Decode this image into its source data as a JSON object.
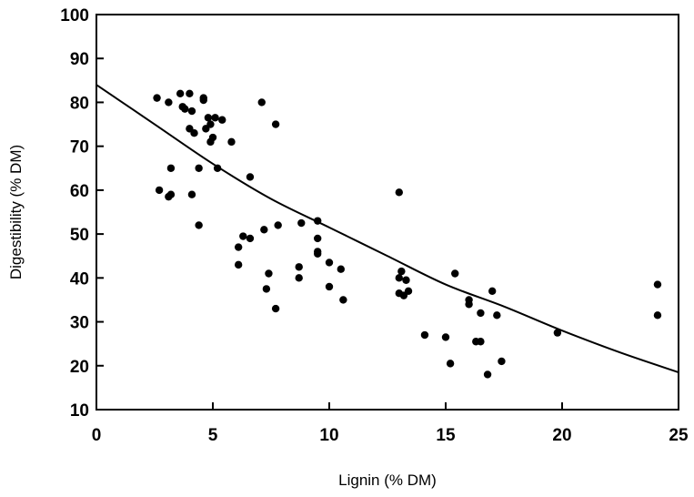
{
  "chart_data": {
    "type": "scatter",
    "title": "",
    "xlabel": "Lignin (% DM)",
    "ylabel": "Digestibility (% DM)",
    "xlim": [
      0,
      25
    ],
    "ylim": [
      10,
      100
    ],
    "xticks": [
      0,
      5,
      10,
      15,
      20,
      25
    ],
    "yticks": [
      10,
      20,
      30,
      40,
      50,
      60,
      70,
      80,
      90,
      100
    ],
    "grid": false,
    "legend": "none",
    "points": [
      {
        "x": 2.6,
        "y": 81
      },
      {
        "x": 2.7,
        "y": 60
      },
      {
        "x": 3.1,
        "y": 80
      },
      {
        "x": 3.1,
        "y": 58.5
      },
      {
        "x": 3.2,
        "y": 59
      },
      {
        "x": 3.2,
        "y": 65
      },
      {
        "x": 3.6,
        "y": 82
      },
      {
        "x": 3.7,
        "y": 79
      },
      {
        "x": 3.8,
        "y": 78.5
      },
      {
        "x": 4.0,
        "y": 82
      },
      {
        "x": 4.0,
        "y": 74
      },
      {
        "x": 4.1,
        "y": 78
      },
      {
        "x": 4.1,
        "y": 59
      },
      {
        "x": 4.2,
        "y": 73
      },
      {
        "x": 4.4,
        "y": 52
      },
      {
        "x": 4.4,
        "y": 65
      },
      {
        "x": 4.6,
        "y": 81
      },
      {
        "x": 4.6,
        "y": 80.5
      },
      {
        "x": 4.7,
        "y": 74
      },
      {
        "x": 4.8,
        "y": 76.5
      },
      {
        "x": 4.9,
        "y": 71
      },
      {
        "x": 4.9,
        "y": 75
      },
      {
        "x": 5.0,
        "y": 72
      },
      {
        "x": 5.1,
        "y": 76.5
      },
      {
        "x": 5.2,
        "y": 65
      },
      {
        "x": 5.4,
        "y": 76
      },
      {
        "x": 5.8,
        "y": 71
      },
      {
        "x": 6.1,
        "y": 47
      },
      {
        "x": 6.1,
        "y": 43
      },
      {
        "x": 6.3,
        "y": 49.5
      },
      {
        "x": 6.6,
        "y": 63
      },
      {
        "x": 6.6,
        "y": 49
      },
      {
        "x": 7.1,
        "y": 80
      },
      {
        "x": 7.2,
        "y": 51
      },
      {
        "x": 7.3,
        "y": 37.5
      },
      {
        "x": 7.4,
        "y": 41
      },
      {
        "x": 7.7,
        "y": 33
      },
      {
        "x": 7.7,
        "y": 75
      },
      {
        "x": 7.8,
        "y": 52
      },
      {
        "x": 8.7,
        "y": 42.5
      },
      {
        "x": 8.7,
        "y": 40
      },
      {
        "x": 8.8,
        "y": 52.5
      },
      {
        "x": 9.5,
        "y": 53
      },
      {
        "x": 9.5,
        "y": 49
      },
      {
        "x": 9.5,
        "y": 46
      },
      {
        "x": 9.5,
        "y": 45.5
      },
      {
        "x": 10.0,
        "y": 43.5
      },
      {
        "x": 10.0,
        "y": 38
      },
      {
        "x": 10.5,
        "y": 42
      },
      {
        "x": 10.6,
        "y": 35
      },
      {
        "x": 13.0,
        "y": 59.5
      },
      {
        "x": 13.0,
        "y": 40
      },
      {
        "x": 13.0,
        "y": 36.5
      },
      {
        "x": 13.1,
        "y": 41.5
      },
      {
        "x": 13.2,
        "y": 36
      },
      {
        "x": 13.3,
        "y": 39.5
      },
      {
        "x": 13.4,
        "y": 37
      },
      {
        "x": 14.1,
        "y": 27
      },
      {
        "x": 15.0,
        "y": 26.5
      },
      {
        "x": 15.2,
        "y": 20.5
      },
      {
        "x": 15.4,
        "y": 41
      },
      {
        "x": 16.0,
        "y": 35
      },
      {
        "x": 16.0,
        "y": 34
      },
      {
        "x": 16.3,
        "y": 25.5
      },
      {
        "x": 16.5,
        "y": 25.5
      },
      {
        "x": 16.5,
        "y": 32
      },
      {
        "x": 16.8,
        "y": 18
      },
      {
        "x": 17.0,
        "y": 37
      },
      {
        "x": 17.2,
        "y": 31.5
      },
      {
        "x": 17.4,
        "y": 21
      },
      {
        "x": 19.8,
        "y": 27.5
      },
      {
        "x": 24.1,
        "y": 38.5
      },
      {
        "x": 24.1,
        "y": 31.5
      }
    ],
    "fit_curve": [
      {
        "x": 0,
        "y": 84
      },
      {
        "x": 2.5,
        "y": 75
      },
      {
        "x": 5,
        "y": 66
      },
      {
        "x": 7.5,
        "y": 58
      },
      {
        "x": 10,
        "y": 51.5
      },
      {
        "x": 12.5,
        "y": 45
      },
      {
        "x": 15,
        "y": 38.5
      },
      {
        "x": 17.5,
        "y": 33.5
      },
      {
        "x": 20,
        "y": 28
      },
      {
        "x": 22.5,
        "y": 23
      },
      {
        "x": 25,
        "y": 18.5
      }
    ],
    "colors": {
      "points": "#000000",
      "curve": "#000000",
      "axes": "#000000"
    }
  }
}
